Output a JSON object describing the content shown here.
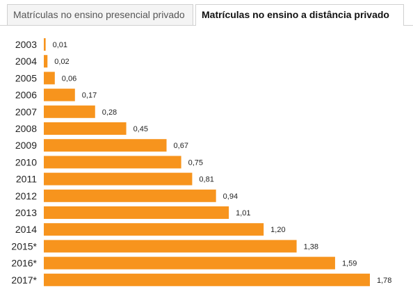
{
  "tabs": [
    {
      "label": "Matrículas no ensino presencial privado",
      "active": false
    },
    {
      "label": "Matrículas no ensino a distância privado",
      "active": true
    }
  ],
  "colors": {
    "bar": "#f7941d"
  },
  "chart_data": {
    "type": "bar",
    "orientation": "horizontal",
    "categories": [
      "2003",
      "2004",
      "2005",
      "2006",
      "2007",
      "2008",
      "2009",
      "2010",
      "2011",
      "2012",
      "2013",
      "2014",
      "2015*",
      "2016*",
      "2017*"
    ],
    "values": [
      0.01,
      0.02,
      0.06,
      0.17,
      0.28,
      0.45,
      0.67,
      0.75,
      0.81,
      0.94,
      1.01,
      1.2,
      1.38,
      1.59,
      1.78
    ],
    "value_labels": [
      "0,01",
      "0,02",
      "0,06",
      "0,17",
      "0,28",
      "0,45",
      "0,67",
      "0,75",
      "0,81",
      "0,94",
      "1,01",
      "1,20",
      "1,38",
      "1,59",
      "1,78"
    ],
    "xlim": [
      0,
      1.78
    ],
    "grid": false,
    "legend": "none"
  }
}
